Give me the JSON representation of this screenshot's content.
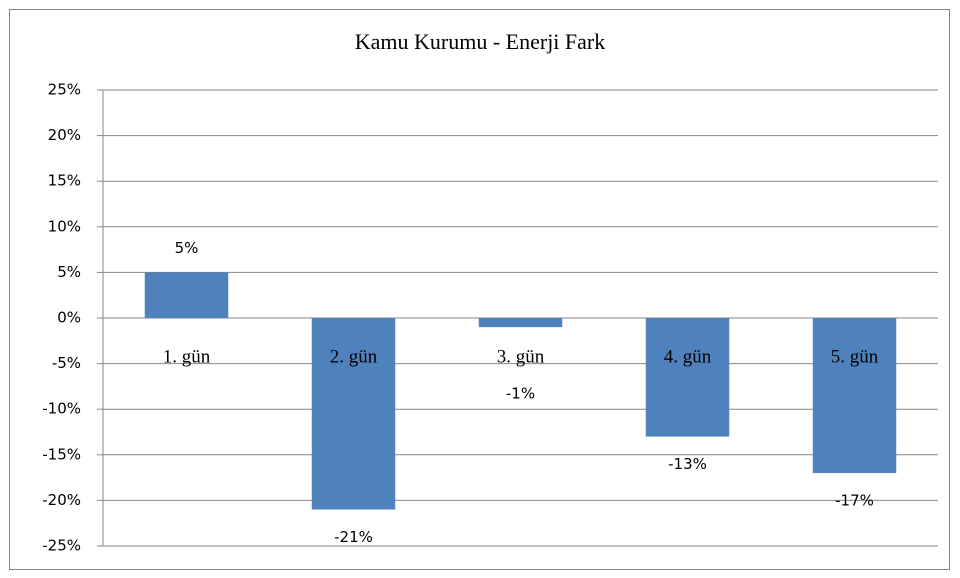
{
  "chart_data": {
    "type": "bar",
    "title": "Kamu Kurumu - Enerji Fark",
    "categories": [
      "1. gün",
      "2. gün",
      "3. gün",
      "4. gün",
      "5. gün"
    ],
    "values": [
      5,
      -21,
      -1,
      -13,
      -17
    ],
    "value_labels": [
      "5%",
      "-21%",
      "-1%",
      "-13%",
      "-17%"
    ],
    "color": "#4f81bd",
    "ylim": [
      -25,
      25
    ],
    "yticks": [
      {
        "value": -25,
        "label": "-25%"
      },
      {
        "value": -20,
        "label": "-20%"
      },
      {
        "value": -15,
        "label": "-15%"
      },
      {
        "value": -10,
        "label": "-10%"
      },
      {
        "value": -5,
        "label": "-5%"
      },
      {
        "value": 0,
        "label": "0%"
      },
      {
        "value": 5,
        "label": "5%"
      },
      {
        "value": 10,
        "label": "10%"
      },
      {
        "value": 15,
        "label": "15%"
      },
      {
        "value": 20,
        "label": "20%"
      },
      {
        "value": 25,
        "label": "25%"
      }
    ],
    "grid": true
  }
}
